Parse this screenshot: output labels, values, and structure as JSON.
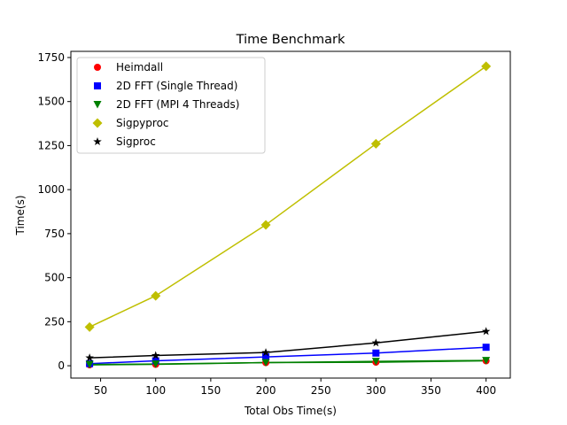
{
  "chart_data": {
    "type": "line",
    "title": "Time Benchmark",
    "xlabel": "Total Obs Time(s)",
    "ylabel": "Time(s)",
    "xlim": [
      23,
      422
    ],
    "ylim": [
      -70,
      1785
    ],
    "grid": false,
    "legend_position": "top-left",
    "x_ticks": [
      50,
      100,
      150,
      200,
      250,
      300,
      350,
      400
    ],
    "y_ticks": [
      0,
      250,
      500,
      750,
      1000,
      1250,
      1500,
      1750
    ],
    "x": [
      40,
      100,
      200,
      300,
      400
    ],
    "series": [
      {
        "name": "Heimdall",
        "color": "#ff0000",
        "line_color": "#008000",
        "marker": "circle",
        "values": [
          5,
          8,
          18,
          20,
          28
        ]
      },
      {
        "name": "2D FFT (Single Thread)",
        "color": "#0000ff",
        "line_color": "#0000ff",
        "marker": "square",
        "values": [
          12,
          28,
          50,
          72,
          105
        ]
      },
      {
        "name": "2D FFT (MPI 4 Threads)",
        "color": "#008000",
        "line_color": "#008000",
        "marker": "triangle-down",
        "values": [
          7,
          10,
          18,
          25,
          30
        ]
      },
      {
        "name": "Sigpyproc",
        "color": "#bfbf00",
        "line_color": "#bfbf00",
        "marker": "diamond",
        "values": [
          220,
          397,
          800,
          1260,
          1700
        ]
      },
      {
        "name": "Sigproc",
        "color": "#000000",
        "line_color": "#000000",
        "marker": "star",
        "values": [
          45,
          58,
          75,
          130,
          195
        ]
      }
    ]
  }
}
